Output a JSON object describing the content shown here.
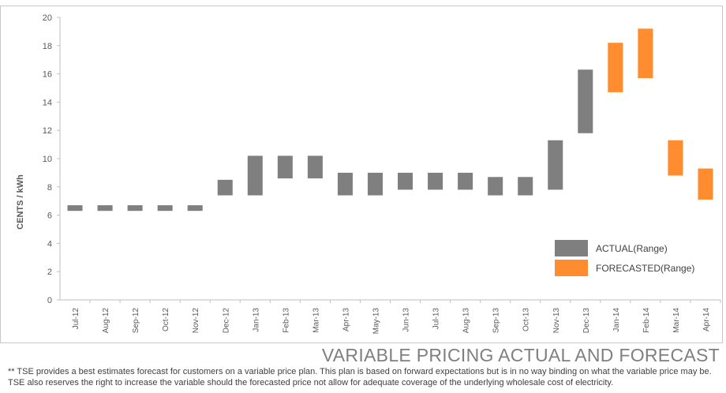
{
  "chart_data": {
    "type": "bar",
    "subtype": "floating-range",
    "title": "VARIABLE PRICING ACTUAL AND FORECAST",
    "ylabel": "CENTS / kWh",
    "xlabel": "",
    "ylim": [
      0,
      20
    ],
    "yticks": [
      "0",
      "2",
      "4",
      "6",
      "8",
      "10",
      "12",
      "14",
      "16",
      "18",
      "20"
    ],
    "grid": false,
    "legend_position": "bottom-right",
    "categories": [
      "Jul-12",
      "Aug-12",
      "Sep-12",
      "Oct-12",
      "Nov-12",
      "Dec-12",
      "Jan-13",
      "Feb-13",
      "Mar-13",
      "Apr-13",
      "May-13",
      "Jun-13",
      "Jul-13",
      "Aug-13",
      "Sep-13",
      "Oct-13",
      "Nov-13",
      "Dec-13",
      "Jan-14",
      "Feb-14",
      "Mar-14",
      "Apr-14"
    ],
    "series": [
      {
        "name": "ACTUAL(Range)",
        "color": "#7f7f7f",
        "ranges": [
          {
            "category": "Jul-12",
            "low": 6.3,
            "high": 6.7
          },
          {
            "category": "Aug-12",
            "low": 6.3,
            "high": 6.7
          },
          {
            "category": "Sep-12",
            "low": 6.3,
            "high": 6.7
          },
          {
            "category": "Oct-12",
            "low": 6.3,
            "high": 6.7
          },
          {
            "category": "Nov-12",
            "low": 6.3,
            "high": 6.7
          },
          {
            "category": "Dec-12",
            "low": 7.4,
            "high": 8.5
          },
          {
            "category": "Jan-13",
            "low": 7.4,
            "high": 10.2
          },
          {
            "category": "Feb-13",
            "low": 8.6,
            "high": 10.2
          },
          {
            "category": "Mar-13",
            "low": 8.6,
            "high": 10.2
          },
          {
            "category": "Apr-13",
            "low": 7.4,
            "high": 9.0
          },
          {
            "category": "May-13",
            "low": 7.4,
            "high": 9.0
          },
          {
            "category": "Jun-13",
            "low": 7.8,
            "high": 9.0
          },
          {
            "category": "Jul-13",
            "low": 7.8,
            "high": 9.0
          },
          {
            "category": "Aug-13",
            "low": 7.8,
            "high": 9.0
          },
          {
            "category": "Sep-13",
            "low": 7.4,
            "high": 8.7
          },
          {
            "category": "Oct-13",
            "low": 7.4,
            "high": 8.7
          },
          {
            "category": "Nov-13",
            "low": 7.8,
            "high": 11.3
          },
          {
            "category": "Dec-13",
            "low": 11.8,
            "high": 16.3
          }
        ]
      },
      {
        "name": "FORECASTED(Range)",
        "color": "#ff8c2e",
        "ranges": [
          {
            "category": "Jan-14",
            "low": 14.7,
            "high": 18.2
          },
          {
            "category": "Feb-14",
            "low": 15.7,
            "high": 19.2
          },
          {
            "category": "Mar-14",
            "low": 8.8,
            "high": 11.3
          },
          {
            "category": "Apr-14",
            "low": 7.1,
            "high": 9.3
          }
        ]
      }
    ]
  },
  "footnote": "** TSE provides a best estimates forecast for customers on a variable price plan. This plan is based on forward expectations but is in no way binding on what the variable price may be.  TSE also reserves the right to increase the variable should the  forecasted price not allow for adequate coverage of the underlying wholesale cost of electricity."
}
